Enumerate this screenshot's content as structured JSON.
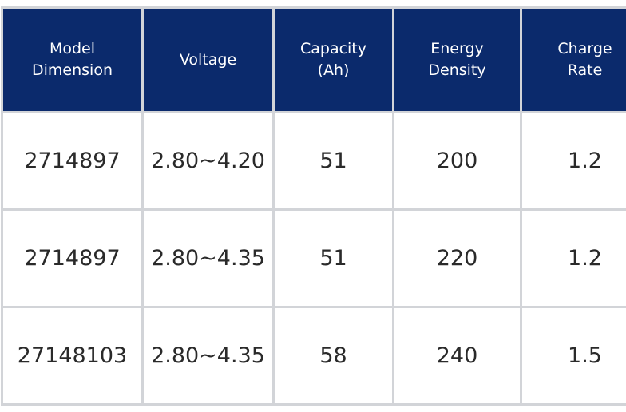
{
  "table": {
    "header": [
      "Model\nDimension",
      "Voltage",
      "Capacity\n(Ah)",
      "Energy\nDensity",
      "Charge\nRate"
    ],
    "rows": [
      [
        "2714897",
        "2.80~4.20",
        "51",
        "200",
        "1.2"
      ],
      [
        "2714897",
        "2.80~4.35",
        "51",
        "220",
        "1.2"
      ],
      [
        "27148103",
        "2.80~4.35",
        "58",
        "240",
        "1.5"
      ]
    ]
  }
}
